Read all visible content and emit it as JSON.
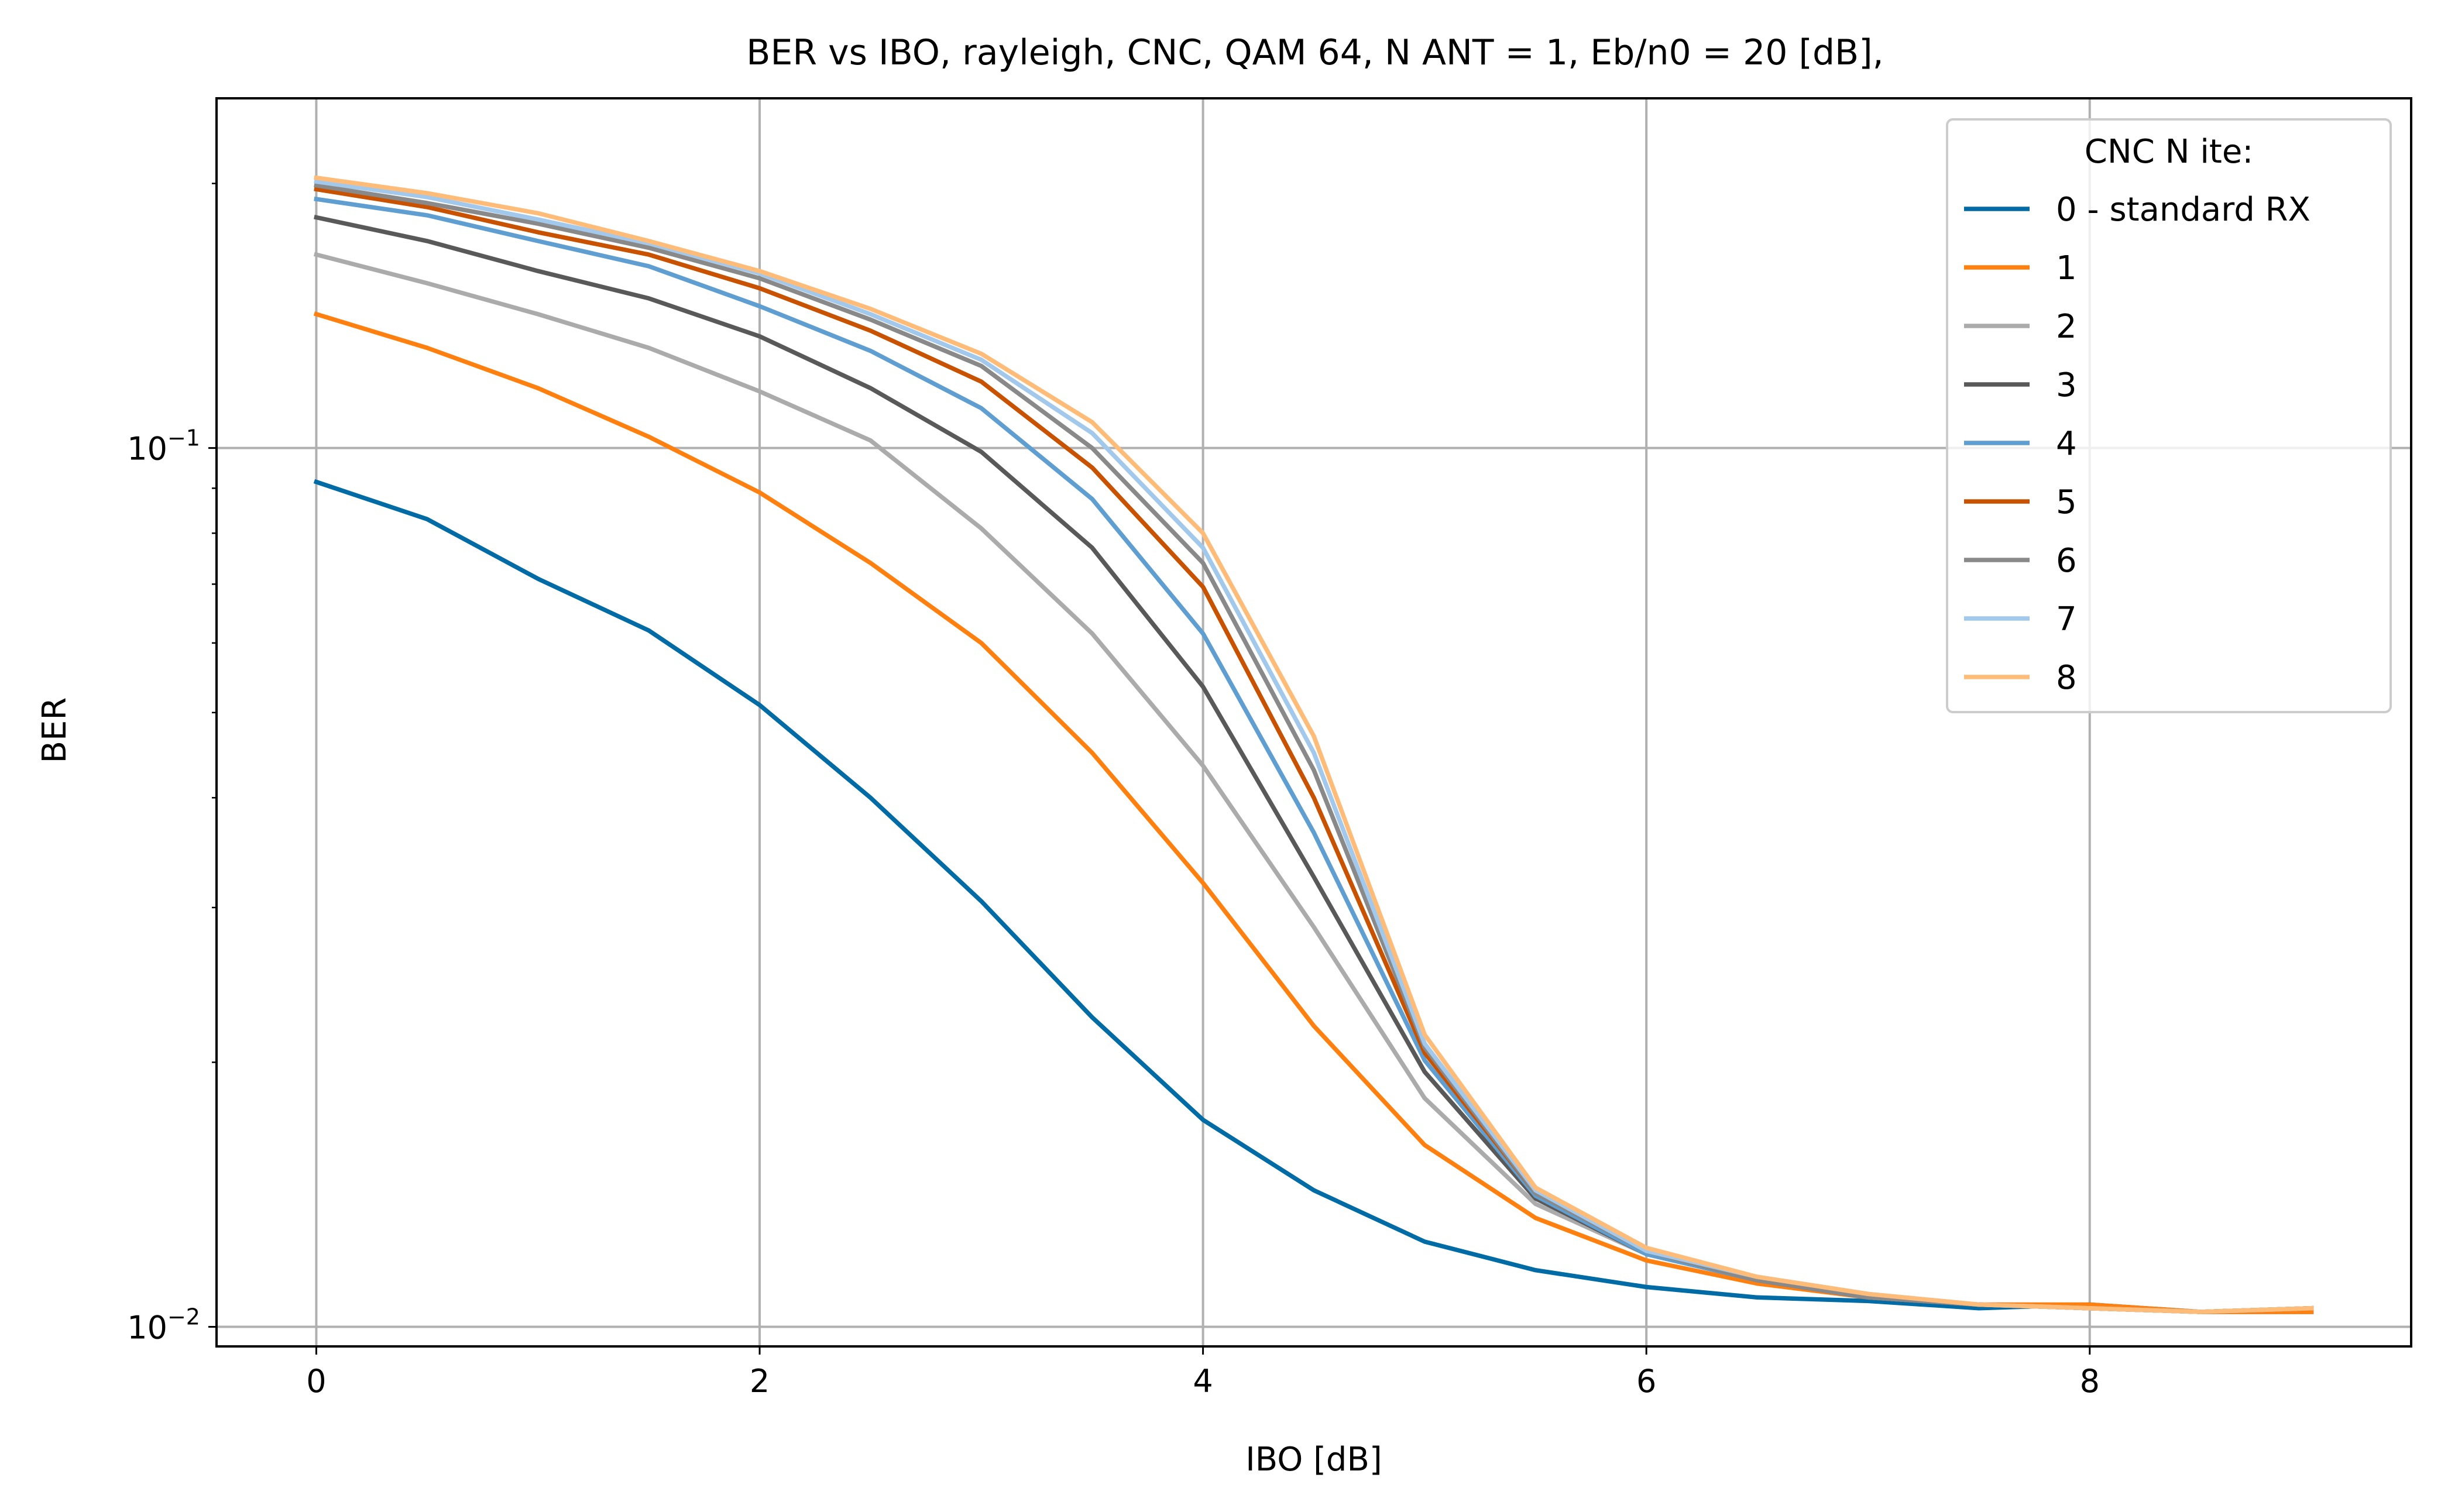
{
  "chart_data": {
    "type": "line",
    "title": "BER vs IBO, rayleigh, CNC, QAM 64, N ANT = 1, Eb/n0 = 20 [dB],",
    "xlabel": "IBO [dB]",
    "ylabel": "BER",
    "xlim": [
      -0.45,
      9.45
    ],
    "ylim": [
      0.0095,
      0.25
    ],
    "yscale": "log",
    "grid": true,
    "legend_title": "CNC N ite:",
    "legend_position": "top-right",
    "x_ticks": [
      0,
      2,
      4,
      6,
      8
    ],
    "y_tick_labels": [
      {
        "value": 0.1,
        "base": "10",
        "exp": "−1"
      },
      {
        "value": 0.01,
        "base": "10",
        "exp": "−2"
      }
    ],
    "x": [
      0,
      0.5,
      1,
      1.5,
      2,
      2.5,
      3,
      3.5,
      4,
      4.5,
      5,
      5.5,
      6,
      6.5,
      7,
      7.5,
      8,
      8.5,
      9
    ],
    "series": [
      {
        "name": "0 - standard RX",
        "color": "#006ba4",
        "values": [
          0.0915,
          0.083,
          0.071,
          0.062,
          0.051,
          0.04,
          0.0305,
          0.0225,
          0.0172,
          0.0143,
          0.0125,
          0.0116,
          0.0111,
          0.0108,
          0.0107,
          0.0105,
          0.0106,
          0.0104,
          0.0104
        ]
      },
      {
        "name": "1",
        "color": "#ff800e",
        "values": [
          0.142,
          0.13,
          0.117,
          0.103,
          0.089,
          0.074,
          0.06,
          0.045,
          0.032,
          0.022,
          0.0161,
          0.0133,
          0.0119,
          0.0112,
          0.0108,
          0.0106,
          0.0106,
          0.0104,
          0.0104
        ]
      },
      {
        "name": "2",
        "color": "#ababab",
        "values": [
          0.166,
          0.154,
          0.142,
          0.13,
          0.116,
          0.102,
          0.081,
          0.0615,
          0.0435,
          0.0285,
          0.0182,
          0.0138,
          0.0121,
          0.0113,
          0.0108,
          0.0106,
          0.0105,
          0.0104,
          0.0105
        ]
      },
      {
        "name": "3",
        "color": "#595959",
        "values": [
          0.183,
          0.172,
          0.159,
          0.148,
          0.134,
          0.117,
          0.099,
          0.077,
          0.0535,
          0.0325,
          0.0195,
          0.014,
          0.0121,
          0.0113,
          0.0108,
          0.0106,
          0.0105,
          0.0104,
          0.0105
        ]
      },
      {
        "name": "4",
        "color": "#5f9ed1",
        "values": [
          0.192,
          0.184,
          0.172,
          0.161,
          0.145,
          0.129,
          0.111,
          0.0875,
          0.0615,
          0.0365,
          0.0201,
          0.0141,
          0.0121,
          0.0113,
          0.0108,
          0.0106,
          0.0105,
          0.0104,
          0.0105
        ]
      },
      {
        "name": "5",
        "color": "#c85200",
        "values": [
          0.197,
          0.188,
          0.176,
          0.166,
          0.152,
          0.136,
          0.119,
          0.095,
          0.0695,
          0.04,
          0.0205,
          0.0142,
          0.0122,
          0.0113,
          0.0108,
          0.0106,
          0.0105,
          0.0104,
          0.0105
        ]
      },
      {
        "name": "6",
        "color": "#898989",
        "values": [
          0.199,
          0.19,
          0.18,
          0.169,
          0.156,
          0.14,
          0.124,
          0.1,
          0.074,
          0.043,
          0.0208,
          0.0142,
          0.0122,
          0.0113,
          0.0108,
          0.0106,
          0.0105,
          0.0104,
          0.0105
        ]
      },
      {
        "name": "7",
        "color": "#a2c8ec",
        "values": [
          0.201,
          0.193,
          0.182,
          0.171,
          0.158,
          0.142,
          0.126,
          0.104,
          0.077,
          0.045,
          0.021,
          0.0143,
          0.0122,
          0.0114,
          0.0109,
          0.0106,
          0.0105,
          0.0104,
          0.0105
        ]
      },
      {
        "name": "8",
        "color": "#ffbc79",
        "values": [
          0.203,
          0.195,
          0.185,
          0.172,
          0.159,
          0.144,
          0.128,
          0.107,
          0.08,
          0.047,
          0.0215,
          0.0144,
          0.0123,
          0.0114,
          0.0109,
          0.0106,
          0.0105,
          0.0104,
          0.0105
        ]
      }
    ]
  }
}
